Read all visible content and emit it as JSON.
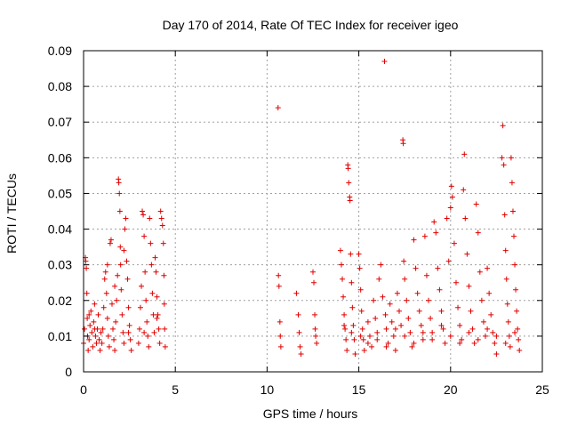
{
  "chart_data": {
    "type": "scatter",
    "title": "Day 170 of 2014, Rate Of TEC Index for receiver igeo",
    "xlabel": "GPS time / hours",
    "ylabel": "ROTI / TECUs",
    "xlim": [
      0,
      25
    ],
    "ylim": [
      0,
      0.09
    ],
    "xticks": [
      0,
      5,
      10,
      15,
      20,
      25
    ],
    "xtick_labels": [
      "0",
      "5",
      "10",
      "15",
      "20",
      "25"
    ],
    "yticks": [
      0,
      0.01,
      0.02,
      0.03,
      0.04,
      0.05,
      0.06,
      0.07,
      0.08,
      0.09
    ],
    "ytick_labels": [
      "0",
      "0.01",
      "0.02",
      "0.03",
      "0.04",
      "0.05",
      "0.06",
      "0.07",
      "0.08",
      "0.09"
    ],
    "grid": true,
    "marker": "+",
    "color": "#e00000",
    "series": [
      {
        "name": "ROTI",
        "points": [
          [
            0.0,
            0.008
          ],
          [
            0.05,
            0.012
          ],
          [
            0.1,
            0.032
          ],
          [
            0.12,
            0.031
          ],
          [
            0.15,
            0.029
          ],
          [
            0.18,
            0.022
          ],
          [
            0.2,
            0.015
          ],
          [
            0.22,
            0.01
          ],
          [
            0.25,
            0.006
          ],
          [
            0.3,
            0.009
          ],
          [
            0.35,
            0.013
          ],
          [
            0.4,
            0.017
          ],
          [
            0.45,
            0.011
          ],
          [
            0.5,
            0.007
          ],
          [
            0.55,
            0.014
          ],
          [
            0.6,
            0.019
          ],
          [
            0.65,
            0.01
          ],
          [
            0.7,
            0.008
          ],
          [
            0.75,
            0.012
          ],
          [
            0.8,
            0.016
          ],
          [
            0.85,
            0.009
          ],
          [
            0.9,
            0.006
          ],
          [
            0.95,
            0.011
          ],
          [
            0.3,
            0.016
          ],
          [
            0.6,
            0.012
          ],
          [
            1.0,
            0.008
          ],
          [
            1.05,
            0.012
          ],
          [
            1.1,
            0.018
          ],
          [
            1.15,
            0.026
          ],
          [
            1.2,
            0.028
          ],
          [
            1.25,
            0.022
          ],
          [
            1.3,
            0.015
          ],
          [
            1.35,
            0.01
          ],
          [
            1.4,
            0.007
          ],
          [
            1.45,
            0.036
          ],
          [
            1.5,
            0.037
          ],
          [
            1.55,
            0.019
          ],
          [
            1.6,
            0.012
          ],
          [
            1.65,
            0.009
          ],
          [
            1.7,
            0.006
          ],
          [
            1.75,
            0.014
          ],
          [
            1.8,
            0.02
          ],
          [
            1.85,
            0.027
          ],
          [
            1.9,
            0.054
          ],
          [
            1.92,
            0.053
          ],
          [
            1.95,
            0.05
          ],
          [
            1.98,
            0.045
          ],
          [
            2.0,
            0.035
          ],
          [
            2.02,
            0.03
          ],
          [
            2.05,
            0.023
          ],
          [
            2.1,
            0.016
          ],
          [
            2.15,
            0.011
          ],
          [
            2.2,
            0.008
          ],
          [
            2.25,
            0.04
          ],
          [
            2.3,
            0.043
          ],
          [
            2.35,
            0.031
          ],
          [
            2.4,
            0.026
          ],
          [
            2.45,
            0.018
          ],
          [
            2.5,
            0.013
          ],
          [
            2.55,
            0.009
          ],
          [
            2.6,
            0.006
          ],
          [
            1.3,
            0.03
          ],
          [
            2.2,
            0.034
          ],
          [
            1.7,
            0.024
          ],
          [
            2.45,
            0.011
          ],
          [
            3.0,
            0.008
          ],
          [
            3.05,
            0.012
          ],
          [
            3.1,
            0.018
          ],
          [
            3.15,
            0.024
          ],
          [
            3.2,
            0.045
          ],
          [
            3.25,
            0.044
          ],
          [
            3.3,
            0.038
          ],
          [
            3.35,
            0.028
          ],
          [
            3.4,
            0.02
          ],
          [
            3.45,
            0.014
          ],
          [
            3.5,
            0.01
          ],
          [
            3.55,
            0.007
          ],
          [
            3.6,
            0.043
          ],
          [
            3.65,
            0.036
          ],
          [
            3.7,
            0.03
          ],
          [
            3.75,
            0.022
          ],
          [
            3.8,
            0.016
          ],
          [
            3.85,
            0.011
          ],
          [
            3.9,
            0.032
          ],
          [
            3.95,
            0.028
          ],
          [
            4.0,
            0.021
          ],
          [
            4.05,
            0.016
          ],
          [
            4.1,
            0.012
          ],
          [
            4.15,
            0.008
          ],
          [
            4.2,
            0.045
          ],
          [
            4.25,
            0.043
          ],
          [
            4.3,
            0.041
          ],
          [
            4.35,
            0.036
          ],
          [
            4.38,
            0.027
          ],
          [
            4.4,
            0.019
          ],
          [
            4.42,
            0.012
          ],
          [
            4.45,
            0.007
          ],
          [
            3.3,
            0.011
          ],
          [
            4.0,
            0.015
          ],
          [
            10.6,
            0.074
          ],
          [
            10.62,
            0.027
          ],
          [
            10.65,
            0.024
          ],
          [
            10.7,
            0.014
          ],
          [
            10.72,
            0.01
          ],
          [
            10.75,
            0.007
          ],
          [
            11.6,
            0.022
          ],
          [
            11.7,
            0.016
          ],
          [
            11.75,
            0.011
          ],
          [
            11.8,
            0.007
          ],
          [
            11.85,
            0.005
          ],
          [
            12.5,
            0.028
          ],
          [
            12.55,
            0.025
          ],
          [
            12.6,
            0.016
          ],
          [
            12.62,
            0.012
          ],
          [
            12.65,
            0.01
          ],
          [
            12.7,
            0.008
          ],
          [
            14.0,
            0.034
          ],
          [
            14.05,
            0.03
          ],
          [
            14.1,
            0.026
          ],
          [
            14.15,
            0.021
          ],
          [
            14.2,
            0.016
          ],
          [
            14.25,
            0.012
          ],
          [
            14.3,
            0.009
          ],
          [
            14.35,
            0.006
          ],
          [
            14.4,
            0.058
          ],
          [
            14.42,
            0.057
          ],
          [
            14.45,
            0.053
          ],
          [
            14.5,
            0.049
          ],
          [
            14.52,
            0.048
          ],
          [
            14.55,
            0.033
          ],
          [
            14.6,
            0.025
          ],
          [
            14.65,
            0.018
          ],
          [
            14.7,
            0.013
          ],
          [
            14.75,
            0.009
          ],
          [
            14.8,
            0.005
          ],
          [
            15.0,
            0.033
          ],
          [
            15.05,
            0.029
          ],
          [
            15.1,
            0.023
          ],
          [
            15.15,
            0.017
          ],
          [
            15.2,
            0.012
          ],
          [
            15.25,
            0.009
          ],
          [
            15.3,
            0.006
          ],
          [
            15.5,
            0.014
          ],
          [
            15.6,
            0.01
          ],
          [
            15.7,
            0.007
          ],
          [
            15.8,
            0.02
          ],
          [
            15.9,
            0.015
          ],
          [
            16.0,
            0.011
          ],
          [
            16.1,
            0.026
          ],
          [
            16.2,
            0.03
          ],
          [
            16.3,
            0.021
          ],
          [
            16.4,
            0.087
          ],
          [
            16.45,
            0.016
          ],
          [
            16.5,
            0.012
          ],
          [
            16.6,
            0.008
          ],
          [
            16.7,
            0.019
          ],
          [
            16.8,
            0.014
          ],
          [
            16.9,
            0.01
          ],
          [
            17.0,
            0.006
          ],
          [
            17.1,
            0.022
          ],
          [
            17.2,
            0.017
          ],
          [
            17.3,
            0.013
          ],
          [
            17.4,
            0.065
          ],
          [
            17.42,
            0.064
          ],
          [
            17.45,
            0.031
          ],
          [
            17.5,
            0.026
          ],
          [
            17.6,
            0.02
          ],
          [
            17.7,
            0.015
          ],
          [
            17.8,
            0.011
          ],
          [
            17.9,
            0.007
          ],
          [
            18.0,
            0.037
          ],
          [
            18.1,
            0.029
          ],
          [
            18.2,
            0.022
          ],
          [
            18.3,
            0.017
          ],
          [
            18.4,
            0.013
          ],
          [
            18.5,
            0.009
          ],
          [
            18.6,
            0.038
          ],
          [
            18.7,
            0.027
          ],
          [
            18.8,
            0.02
          ],
          [
            18.9,
            0.015
          ],
          [
            19.0,
            0.011
          ],
          [
            19.1,
            0.042
          ],
          [
            19.2,
            0.039
          ],
          [
            19.3,
            0.029
          ],
          [
            19.4,
            0.023
          ],
          [
            19.5,
            0.017
          ],
          [
            19.6,
            0.012
          ],
          [
            19.7,
            0.008
          ],
          [
            19.8,
            0.043
          ],
          [
            19.9,
            0.031
          ],
          [
            20.0,
            0.046
          ],
          [
            20.05,
            0.052
          ],
          [
            20.1,
            0.049
          ],
          [
            20.2,
            0.036
          ],
          [
            20.3,
            0.025
          ],
          [
            20.4,
            0.018
          ],
          [
            20.5,
            0.013
          ],
          [
            20.6,
            0.009
          ],
          [
            20.7,
            0.051
          ],
          [
            20.75,
            0.061
          ],
          [
            20.8,
            0.043
          ],
          [
            20.9,
            0.033
          ],
          [
            21.0,
            0.024
          ],
          [
            21.1,
            0.017
          ],
          [
            21.2,
            0.012
          ],
          [
            21.3,
            0.008
          ],
          [
            21.4,
            0.047
          ],
          [
            21.5,
            0.039
          ],
          [
            21.6,
            0.028
          ],
          [
            21.7,
            0.02
          ],
          [
            21.8,
            0.014
          ],
          [
            21.9,
            0.01
          ],
          [
            22.0,
            0.029
          ],
          [
            22.1,
            0.022
          ],
          [
            22.2,
            0.016
          ],
          [
            22.3,
            0.011
          ],
          [
            22.4,
            0.008
          ],
          [
            22.5,
            0.005
          ],
          [
            22.8,
            0.06
          ],
          [
            22.85,
            0.069
          ],
          [
            22.9,
            0.058
          ],
          [
            22.95,
            0.044
          ],
          [
            23.0,
            0.034
          ],
          [
            23.05,
            0.026
          ],
          [
            23.1,
            0.019
          ],
          [
            23.15,
            0.014
          ],
          [
            23.2,
            0.01
          ],
          [
            23.25,
            0.007
          ],
          [
            23.3,
            0.06
          ],
          [
            23.35,
            0.053
          ],
          [
            23.4,
            0.045
          ],
          [
            23.45,
            0.038
          ],
          [
            23.5,
            0.03
          ],
          [
            23.55,
            0.023
          ],
          [
            23.6,
            0.017
          ],
          [
            23.65,
            0.012
          ],
          [
            23.7,
            0.009
          ],
          [
            23.75,
            0.006
          ],
          [
            14.2,
            0.013
          ],
          [
            14.6,
            0.011
          ],
          [
            15.1,
            0.01
          ],
          [
            15.5,
            0.008
          ],
          [
            16.0,
            0.009
          ],
          [
            16.5,
            0.007
          ],
          [
            17.0,
            0.012
          ],
          [
            17.5,
            0.01
          ],
          [
            18.0,
            0.008
          ],
          [
            18.5,
            0.011
          ],
          [
            19.0,
            0.009
          ],
          [
            19.5,
            0.013
          ],
          [
            20.0,
            0.01
          ],
          [
            20.5,
            0.008
          ],
          [
            21.0,
            0.011
          ],
          [
            21.5,
            0.009
          ],
          [
            22.0,
            0.012
          ],
          [
            22.5,
            0.01
          ],
          [
            23.0,
            0.008
          ],
          [
            23.5,
            0.011
          ]
        ]
      }
    ]
  }
}
